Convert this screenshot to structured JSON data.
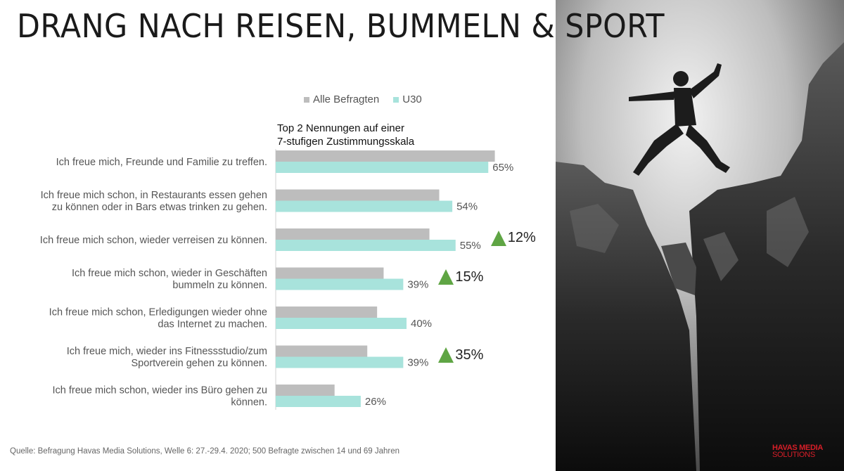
{
  "header": {
    "title": "DRANG NACH REISEN, BUMMELN & SPORT"
  },
  "legend": {
    "series1": "Alle Befragten",
    "series2": "U30"
  },
  "subtitle": {
    "line1": "Top 2 Nennungen auf einer",
    "line2": "7-stufigen Zustimmungsskala"
  },
  "colors": {
    "series1": "#bdbdbd",
    "series2": "#a8e3dc",
    "triangle": "#5fa544"
  },
  "chart_data": {
    "type": "bar",
    "orientation": "horizontal",
    "categories": [
      [
        "Ich freue mich, Freunde und Familie zu treffen."
      ],
      [
        "Ich freue mich schon, in Restaurants essen gehen",
        "zu können oder in Bars etwas trinken zu gehen."
      ],
      [
        "Ich freue mich schon, wieder verreisen zu können."
      ],
      [
        "Ich freue mich schon, wieder in Geschäften",
        "bummeln zu können."
      ],
      [
        "Ich freue mich schon, Erledigungen wieder ohne",
        "das Internet zu machen."
      ],
      [
        "Ich freue mich, wieder ins Fitnessstudio/zum",
        "Sportverein gehen zu können."
      ],
      [
        "Ich freue mich schon, wieder ins Büro gehen zu",
        "können."
      ]
    ],
    "series": [
      {
        "name": "Alle Befragten",
        "values": [
          67,
          50,
          47,
          33,
          31,
          28,
          18
        ]
      },
      {
        "name": "U30",
        "values": [
          65,
          54,
          55,
          39,
          40,
          39,
          26
        ],
        "labels": [
          "65%",
          "54%",
          "55%",
          "39%",
          "40%",
          "39%",
          "26%"
        ]
      }
    ],
    "callouts": [
      {
        "category_index": 2,
        "label": "12%"
      },
      {
        "category_index": 3,
        "label": "15%"
      },
      {
        "category_index": 5,
        "label": "35%"
      }
    ],
    "xlim": [
      0,
      100
    ]
  },
  "footer": {
    "source": "Quelle: Befragung Havas Media Solutions, Welle 6: 27.-29.4. 2020; 500 Befragte zwischen 14 und 69 Jahren"
  },
  "logo": {
    "line1": "HAVAS MEDIA",
    "line2": "SOLUTIONS"
  }
}
